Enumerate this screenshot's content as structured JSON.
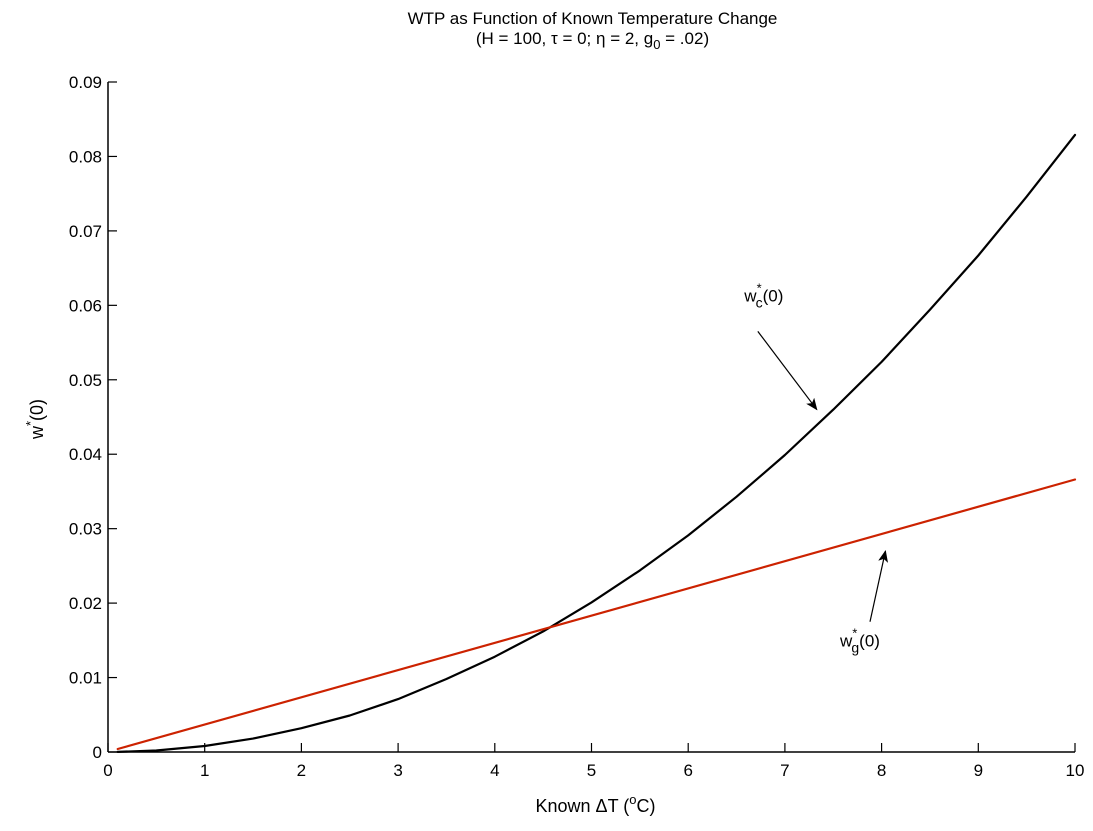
{
  "chart_data": {
    "type": "line",
    "title": "WTP as Function of Known Temperature Change",
    "subtitle": {
      "parts": [
        {
          "t": "(H = 100, "
        },
        {
          "t": "τ"
        },
        {
          "t": " = 0; "
        },
        {
          "t": "η"
        },
        {
          "t": " = 2, g"
        },
        {
          "t": "0",
          "sub": true
        },
        {
          "t": " = .02)"
        }
      ]
    },
    "xlabel": {
      "parts": [
        {
          "t": "Known "
        },
        {
          "t": "Δ"
        },
        {
          "t": "T ("
        },
        {
          "t": "o",
          "sup": true
        },
        {
          "t": "C)"
        }
      ]
    },
    "ylabel": {
      "parts": [
        {
          "t": "w"
        },
        {
          "t": "*",
          "sup": true
        },
        {
          "t": "(0)"
        }
      ]
    },
    "xlim": [
      0,
      10
    ],
    "ylim": [
      0,
      0.09
    ],
    "xticks": [
      "0",
      "1",
      "2",
      "3",
      "4",
      "5",
      "6",
      "7",
      "8",
      "9",
      "10"
    ],
    "xtick_values": [
      0,
      1,
      2,
      3,
      4,
      5,
      6,
      7,
      8,
      9,
      10
    ],
    "yticks": [
      "0",
      "0.01",
      "0.02",
      "0.03",
      "0.04",
      "0.05",
      "0.06",
      "0.07",
      "0.08",
      "0.09"
    ],
    "ytick_values": [
      0,
      0.01,
      0.02,
      0.03,
      0.04,
      0.05,
      0.06,
      0.07,
      0.08,
      0.09
    ],
    "grid": false,
    "series": [
      {
        "key": "wc",
        "color": "#000000",
        "x": [
          0.1,
          0.5,
          1,
          1.5,
          2,
          2.5,
          3,
          3.5,
          4,
          4.5,
          5,
          5.5,
          6,
          6.5,
          7,
          7.5,
          8,
          8.5,
          9,
          9.5,
          10
        ],
        "y": [
          1e-05,
          0.0002,
          0.0008,
          0.0018,
          0.0032,
          0.0049,
          0.0071,
          0.0098,
          0.0128,
          0.0162,
          0.0201,
          0.0244,
          0.0291,
          0.0343,
          0.0399,
          0.046,
          0.0524,
          0.0594,
          0.0667,
          0.0746,
          0.0829
        ]
      },
      {
        "key": "wg",
        "color": "#cc2200",
        "x": [
          0.1,
          10
        ],
        "y": [
          0.0004,
          0.0366
        ]
      }
    ],
    "annotations": [
      {
        "series": "wc",
        "label": {
          "parts": [
            {
              "t": "w"
            },
            {
              "t": "*",
              "sup": true
            },
            {
              "t": "c",
              "sub": true
            },
            {
              "t": "(0)"
            }
          ]
        },
        "text_at": [
          6.58,
          0.0605
        ],
        "arrow_from": [
          6.72,
          0.0565
        ],
        "arrow_to": [
          7.33,
          0.046
        ]
      },
      {
        "series": "wg",
        "label": {
          "parts": [
            {
              "t": "w"
            },
            {
              "t": "*",
              "sup": true
            },
            {
              "t": "g",
              "sub": true
            },
            {
              "t": "(0)"
            }
          ]
        },
        "text_at": [
          7.57,
          0.0142
        ],
        "arrow_from": [
          7.88,
          0.0175
        ],
        "arrow_to": [
          8.04,
          0.027
        ]
      }
    ]
  }
}
